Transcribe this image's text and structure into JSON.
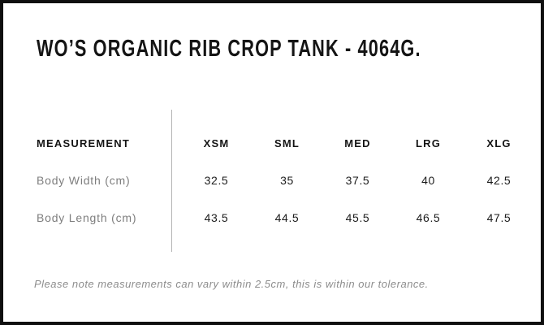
{
  "product": {
    "title": "WO’S ORGANIC RIB CROP TANK - 4064G."
  },
  "size_chart": {
    "measurement_header": "MEASUREMENT",
    "size_columns": [
      "XSM",
      "SML",
      "MED",
      "LRG",
      "XLG"
    ],
    "rows": [
      {
        "label": "Body Width (cm)",
        "values": [
          "32.5",
          "35",
          "37.5",
          "40",
          "42.5"
        ]
      },
      {
        "label": "Body Length (cm)",
        "values": [
          "43.5",
          "44.5",
          "45.5",
          "46.5",
          "47.5"
        ]
      }
    ]
  },
  "note": {
    "text": "Please note measurements can vary within 2.5cm, this is within our tolerance."
  },
  "colors": {
    "border": "#0f0f0f",
    "heading_text": "#141414",
    "value_text": "#1c1c1c",
    "label_text": "#7e7e7e",
    "note_text": "#8d8d8d",
    "divider": "#b4b4b4",
    "background": "#ffffff"
  }
}
